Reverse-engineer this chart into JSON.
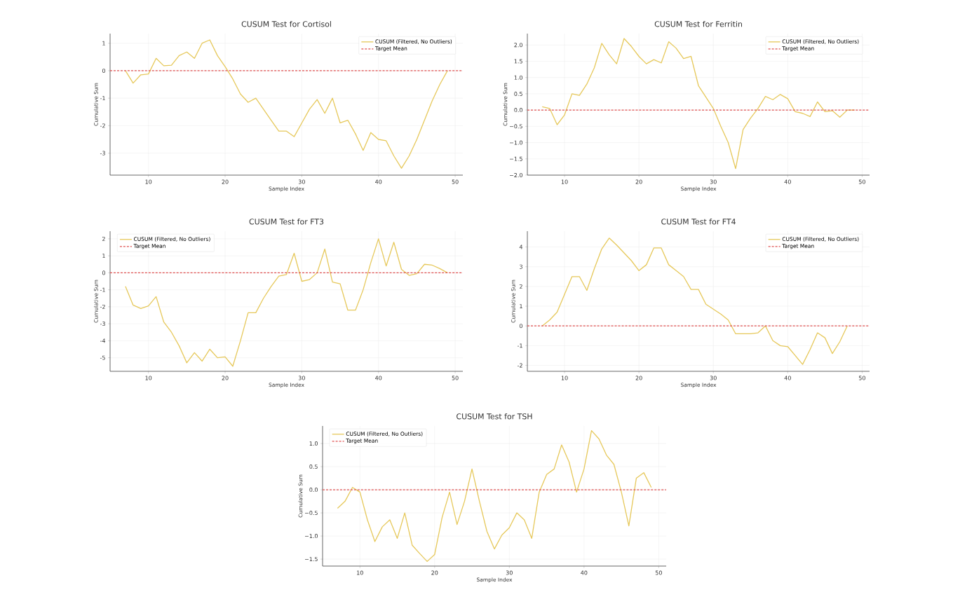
{
  "chart_data": [
    {
      "type": "line",
      "title": "CUSUM Test for Cortisol",
      "xlabel": "Sample Index",
      "ylabel": "Cumulative Sum",
      "x": [
        7,
        8,
        9,
        10,
        11,
        12,
        13,
        14,
        15,
        16,
        17,
        18,
        19,
        20,
        21,
        22,
        23,
        24,
        25,
        26,
        27,
        28,
        29,
        30,
        31,
        32,
        33,
        34,
        35,
        36,
        37,
        38,
        39,
        40,
        41,
        42,
        43,
        44,
        45,
        46,
        47,
        48,
        49
      ],
      "series": [
        {
          "name": "CUSUM (Filtered, No Outliers)",
          "color": "#e6c85a",
          "values": [
            0,
            -0.45,
            -0.15,
            -0.12,
            0.45,
            0.18,
            0.2,
            0.55,
            0.68,
            0.45,
            1.0,
            1.12,
            0.55,
            0.15,
            -0.3,
            -0.85,
            -1.15,
            -1.0,
            -1.4,
            -1.8,
            -2.2,
            -2.2,
            -2.4,
            -1.9,
            -1.4,
            -1.05,
            -1.55,
            -1.0,
            -1.9,
            -1.8,
            -2.3,
            -2.9,
            -2.25,
            -2.5,
            -2.55,
            -3.1,
            -3.55,
            -3.1,
            -2.5,
            -1.8,
            -1.1,
            -0.5,
            0.0
          ]
        }
      ],
      "ref_lines": [
        {
          "axis": "y",
          "value": 0,
          "label": "Target Mean",
          "color": "#e05050",
          "line_style": "dashed"
        }
      ],
      "xlim": [
        5,
        51
      ],
      "ylim": [
        -3.8,
        1.35
      ],
      "xticks": [
        10,
        20,
        30,
        40,
        50
      ],
      "yticks": [
        -3,
        -2,
        -1,
        0,
        1
      ],
      "grid": true,
      "legend": "top right"
    },
    {
      "type": "line",
      "title": "CUSUM Test for Ferritin",
      "xlabel": "Sample Index",
      "ylabel": "Cumulative Sum",
      "x": [
        7,
        8,
        9,
        10,
        11,
        12,
        13,
        14,
        15,
        16,
        17,
        18,
        19,
        20,
        21,
        22,
        23,
        24,
        25,
        26,
        27,
        28,
        29,
        30,
        31,
        32,
        33,
        34,
        35,
        36,
        37,
        38,
        39,
        40,
        41,
        42,
        43,
        44,
        45,
        46,
        47,
        48,
        49
      ],
      "series": [
        {
          "name": "CUSUM (Filtered, No Outliers)",
          "color": "#e6c85a",
          "values": [
            0.1,
            0.05,
            -0.45,
            -0.15,
            0.5,
            0.45,
            0.8,
            1.3,
            2.05,
            1.7,
            1.42,
            2.2,
            1.95,
            1.65,
            1.42,
            1.55,
            1.45,
            2.1,
            1.9,
            1.58,
            1.65,
            0.75,
            0.4,
            0.05,
            -0.5,
            -1.0,
            -1.8,
            -0.6,
            -0.25,
            0.05,
            0.42,
            0.32,
            0.48,
            0.35,
            -0.05,
            -0.1,
            -0.2,
            0.25,
            -0.05,
            -0.02,
            -0.22,
            0.0,
            0.0
          ]
        }
      ],
      "ref_lines": [
        {
          "axis": "y",
          "value": 0,
          "label": "Target Mean",
          "color": "#e05050",
          "line_style": "dashed"
        }
      ],
      "xlim": [
        5,
        51
      ],
      "ylim": [
        -2.0,
        2.35
      ],
      "xticks": [
        10,
        20,
        30,
        40,
        50
      ],
      "yticks": [
        {
          "value": -2.0,
          "label": "−2.0"
        },
        {
          "value": -1.5,
          "label": "−1.5"
        },
        {
          "value": -1.0,
          "label": "−1.0"
        },
        {
          "value": -0.5,
          "label": "−0.5"
        },
        {
          "value": 0.0,
          "label": "0.0"
        },
        {
          "value": 0.5,
          "label": "0.5"
        },
        {
          "value": 1.0,
          "label": "1.0"
        },
        {
          "value": 1.5,
          "label": "1.5"
        },
        {
          "value": 2.0,
          "label": "2.0"
        }
      ],
      "grid": true,
      "legend": "top right"
    },
    {
      "type": "line",
      "title": "CUSUM Test for FT3",
      "xlabel": "Sample Index",
      "ylabel": "Cumulative Sum",
      "x": [
        7,
        8,
        9,
        10,
        11,
        12,
        13,
        14,
        15,
        16,
        17,
        18,
        19,
        20,
        21,
        22,
        23,
        24,
        25,
        26,
        27,
        28,
        29,
        30,
        31,
        32,
        33,
        34,
        35,
        36,
        37,
        38,
        39,
        40,
        41,
        42,
        43,
        44,
        45,
        46,
        47,
        48,
        49
      ],
      "series": [
        {
          "name": "CUSUM (Filtered, No Outliers)",
          "color": "#e6c85a",
          "values": [
            -0.8,
            -1.9,
            -2.1,
            -1.95,
            -1.4,
            -2.9,
            -3.5,
            -4.3,
            -5.3,
            -4.7,
            -5.2,
            -4.5,
            -5.0,
            -4.95,
            -5.5,
            -4.0,
            -2.35,
            -2.35,
            -1.5,
            -0.8,
            -0.2,
            -0.1,
            1.15,
            -0.5,
            -0.4,
            0.0,
            1.4,
            -0.55,
            -0.65,
            -2.2,
            -2.2,
            -1.0,
            0.6,
            2.0,
            0.4,
            1.8,
            0.2,
            -0.15,
            -0.05,
            0.5,
            0.45,
            0.25,
            0.0
          ]
        }
      ],
      "ref_lines": [
        {
          "axis": "y",
          "value": 0,
          "label": "Target Mean",
          "color": "#e05050",
          "line_style": "dashed"
        }
      ],
      "xlim": [
        5,
        51
      ],
      "ylim": [
        -5.8,
        2.45
      ],
      "xticks": [
        10,
        20,
        30,
        40,
        50
      ],
      "yticks": [
        -5,
        -4,
        -3,
        -2,
        -1,
        0,
        1,
        2
      ],
      "grid": true,
      "legend": "top left"
    },
    {
      "type": "line",
      "title": "CUSUM Test for FT4",
      "xlabel": "Sample Index",
      "ylabel": "Cumulative Sum",
      "x": [
        7,
        8,
        9,
        10,
        11,
        12,
        13,
        14,
        15,
        16,
        17,
        18,
        19,
        20,
        21,
        22,
        23,
        24,
        25,
        26,
        27,
        28,
        29,
        30,
        31,
        32,
        33,
        34,
        35,
        36,
        37,
        38,
        39,
        40,
        41,
        42,
        43,
        44,
        45,
        46,
        47,
        48
      ],
      "series": [
        {
          "name": "CUSUM (Filtered, No Outliers)",
          "color": "#e6c85a",
          "values": [
            0.0,
            0.3,
            0.7,
            1.6,
            2.5,
            2.5,
            1.8,
            2.9,
            3.9,
            4.45,
            4.1,
            3.7,
            3.3,
            2.8,
            3.1,
            3.95,
            3.95,
            3.1,
            2.8,
            2.5,
            1.85,
            1.85,
            1.1,
            0.85,
            0.6,
            0.3,
            -0.4,
            -0.4,
            -0.4,
            -0.35,
            0.0,
            -0.75,
            -1.0,
            -1.05,
            -1.5,
            -1.95,
            -1.2,
            -0.35,
            -0.6,
            -1.4,
            -0.8,
            0.0
          ]
        }
      ],
      "ref_lines": [
        {
          "axis": "y",
          "value": 0,
          "label": "Target Mean",
          "color": "#e05050",
          "line_style": "dashed"
        }
      ],
      "xlim": [
        5,
        51
      ],
      "ylim": [
        -2.3,
        4.8
      ],
      "xticks": [
        10,
        20,
        30,
        40,
        50
      ],
      "yticks": [
        -2,
        -1,
        0,
        1,
        2,
        3,
        4
      ],
      "grid": true,
      "legend": "top right"
    },
    {
      "type": "line",
      "title": "CUSUM Test for TSH",
      "xlabel": "Sample Index",
      "ylabel": "Cumulative Sum",
      "x": [
        7,
        8,
        9,
        10,
        11,
        12,
        13,
        14,
        15,
        16,
        17,
        18,
        19,
        20,
        21,
        22,
        23,
        24,
        25,
        26,
        27,
        28,
        29,
        30,
        31,
        32,
        33,
        34,
        35,
        36,
        37,
        38,
        39,
        40,
        41,
        42,
        43,
        44,
        45,
        46,
        47,
        48,
        49
      ],
      "series": [
        {
          "name": "CUSUM (Filtered, No Outliers)",
          "color": "#e6c85a",
          "values": [
            -0.4,
            -0.25,
            0.05,
            -0.05,
            -0.65,
            -1.12,
            -0.8,
            -0.65,
            -1.05,
            -0.5,
            -1.2,
            -1.38,
            -1.55,
            -1.4,
            -0.6,
            -0.05,
            -0.75,
            -0.25,
            0.45,
            -0.25,
            -0.9,
            -1.28,
            -0.98,
            -0.82,
            -0.5,
            -0.65,
            -1.05,
            -0.05,
            0.33,
            0.45,
            0.97,
            0.6,
            -0.05,
            0.45,
            1.28,
            1.1,
            0.75,
            0.55,
            -0.05,
            -0.78,
            0.25,
            0.37,
            0.05
          ]
        }
      ],
      "ref_lines": [
        {
          "axis": "y",
          "value": 0,
          "label": "Target Mean",
          "color": "#e05050",
          "line_style": "dashed"
        }
      ],
      "xlim": [
        5,
        51
      ],
      "ylim": [
        -1.65,
        1.38
      ],
      "xticks": [
        10,
        20,
        30,
        40,
        50
      ],
      "yticks": [
        {
          "value": -1.5,
          "label": "−1.5"
        },
        {
          "value": -1.0,
          "label": "−1.0"
        },
        {
          "value": -0.5,
          "label": "−0.5"
        },
        {
          "value": 0.0,
          "label": "0.0"
        },
        {
          "value": 0.5,
          "label": "0.5"
        },
        {
          "value": 1.0,
          "label": "1.0"
        }
      ],
      "grid": true,
      "legend": "top left"
    }
  ]
}
